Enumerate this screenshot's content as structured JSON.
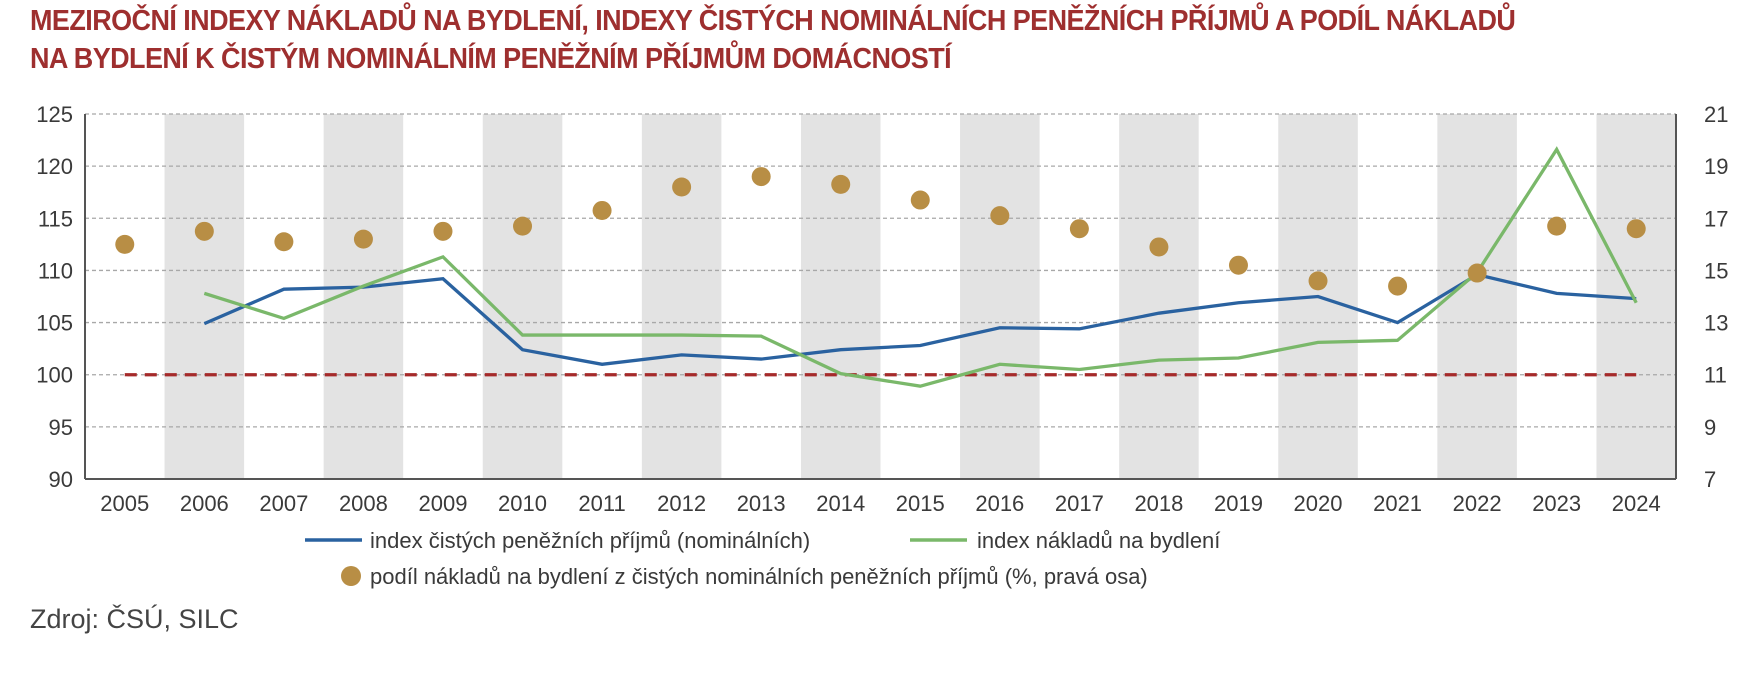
{
  "title": {
    "line1": "MEZIROČNÍ INDEXY NÁKLADŮ NA BYDLENÍ, INDEXY ČISTÝCH NOMINÁLNÍCH PENĚŽNÍCH PŘÍJMŮ A PODÍL NÁKLADŮ",
    "line2": "NA BYDLENÍ K ČISTÝM NOMINÁLNÍM PENĚŽNÍM PŘÍJMŮM DOMÁCNOSTÍ"
  },
  "source": "Zdroj: ČSÚ, SILC",
  "colors": {
    "title": "#9e2f2f",
    "income": "#2a62a0",
    "housing": "#7ab86a",
    "share": "#b88e45",
    "reference": "#a52a2a",
    "band": "#e3e3e3"
  },
  "chart_data": {
    "type": "line",
    "title": "Meziroční indexy nákladů na bydlení, indexy čistých nominálních peněžních příjmů a podíl nákladů na bydlení k čistým nominálním peněžním příjmům domácností",
    "categories": [
      "2005",
      "2006",
      "2007",
      "2008",
      "2009",
      "2010",
      "2011",
      "2012",
      "2013",
      "2014",
      "2015",
      "2016",
      "2017",
      "2018",
      "2019",
      "2020",
      "2021",
      "2022",
      "2023",
      "2024"
    ],
    "left_axis": {
      "ylim": [
        90,
        125
      ],
      "ticks": [
        "90",
        "95",
        "100",
        "105",
        "110",
        "115",
        "120",
        "125"
      ]
    },
    "right_axis": {
      "ylim": [
        7,
        21
      ],
      "ticks": [
        "7",
        "9",
        "11",
        "13",
        "15",
        "17",
        "19",
        "21"
      ]
    },
    "grid": true,
    "alternating_bands": true,
    "reference_line": {
      "value": 100,
      "axis": "left",
      "style": "dashed"
    },
    "series": [
      {
        "name": "index čistých peněžních příjmů (nominálních)",
        "type": "line",
        "axis": "left",
        "color_key": "income",
        "values": [
          null,
          104.9,
          108.2,
          108.4,
          109.2,
          102.4,
          101.0,
          101.9,
          101.5,
          102.4,
          102.8,
          104.5,
          104.4,
          105.9,
          106.9,
          107.5,
          105.0,
          109.6,
          107.8,
          107.3
        ]
      },
      {
        "name": "index nákladů na bydlení",
        "type": "line",
        "axis": "left",
        "color_key": "housing",
        "values": [
          null,
          107.8,
          105.4,
          108.5,
          111.3,
          103.8,
          103.8,
          103.8,
          103.7,
          100.1,
          98.9,
          101.0,
          100.5,
          101.4,
          101.6,
          103.1,
          103.3,
          109.8,
          121.6,
          106.9
        ]
      },
      {
        "name": "podíl nákladů na bydlení z čistých nominálních peněžních příjmů (%, pravá osa)",
        "type": "scatter",
        "axis": "right",
        "color_key": "share",
        "values": [
          16.0,
          16.5,
          16.1,
          16.2,
          16.5,
          16.7,
          17.3,
          18.2,
          18.6,
          18.3,
          17.7,
          17.1,
          16.6,
          15.9,
          15.2,
          14.6,
          14.4,
          14.9,
          16.7,
          16.6
        ]
      }
    ],
    "legend": {
      "placement": "bottom",
      "items": [
        "index čistých peněžních příjmů (nominálních)",
        "index nákladů na bydlení",
        "podíl nákladů na bydlení z čistých nominálních peněžních příjmů (%, pravá osa)"
      ]
    }
  }
}
